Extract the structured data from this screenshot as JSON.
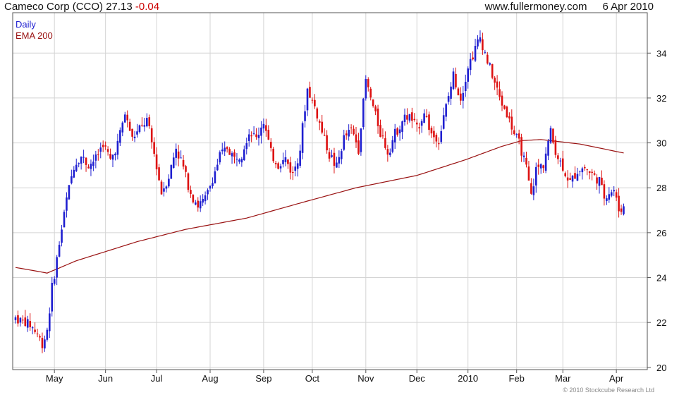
{
  "header": {
    "name": "Cameco Corp (CCO)",
    "last": "27.13",
    "change": "-0.04",
    "website": "www.fullermoney.com",
    "date": "6 Apr 2010"
  },
  "legend": {
    "daily": "Daily",
    "ema": "EMA 200"
  },
  "copyright": "© 2010 Stockcube Research Ltd",
  "colors": {
    "up": "#1f1fd0",
    "down": "#dd1111",
    "ema": "#991111",
    "grid": "#d4d4d4",
    "frame": "#555555"
  },
  "chart_data": {
    "type": "candlestick",
    "y_axis": {
      "side": "right",
      "ylim": [
        19.9,
        35.8
      ],
      "ticks": [
        20,
        22,
        24,
        26,
        28,
        30,
        32,
        34
      ]
    },
    "x_axis": {
      "tick_labels": [
        "May",
        "Jun",
        "Jul",
        "Aug",
        "Sep",
        "Oct",
        "Nov",
        "Dec",
        "2010",
        "Feb",
        "Mar",
        "Apr"
      ]
    },
    "grid": true,
    "legend_position": "top-left",
    "price_keypoints": [
      [
        0,
        22.2
      ],
      [
        6,
        21.9
      ],
      [
        9,
        21.5
      ],
      [
        11,
        21.0
      ],
      [
        13,
        21.7
      ],
      [
        15,
        23.5
      ],
      [
        18,
        25.5
      ],
      [
        21,
        27.5
      ],
      [
        24,
        29.0
      ],
      [
        27,
        29.4
      ],
      [
        30,
        29.0
      ],
      [
        33,
        29.3
      ],
      [
        36,
        30.0
      ],
      [
        39,
        29.2
      ],
      [
        42,
        30.0
      ],
      [
        45,
        31.3
      ],
      [
        48,
        30.2
      ],
      [
        51,
        30.6
      ],
      [
        54,
        31.0
      ],
      [
        57,
        29.5
      ],
      [
        60,
        27.8
      ],
      [
        63,
        28.5
      ],
      [
        66,
        29.8
      ],
      [
        69,
        28.9
      ],
      [
        72,
        27.8
      ],
      [
        75,
        27.2
      ],
      [
        78,
        27.5
      ],
      [
        81,
        28.4
      ],
      [
        84,
        29.4
      ],
      [
        87,
        29.8
      ],
      [
        90,
        29.3
      ],
      [
        93,
        29.6
      ],
      [
        96,
        30.5
      ],
      [
        99,
        30.2
      ],
      [
        102,
        31.0
      ],
      [
        105,
        29.5
      ],
      [
        108,
        29.0
      ],
      [
        111,
        29.3
      ],
      [
        114,
        28.6
      ],
      [
        117,
        29.8
      ],
      [
        120,
        32.4
      ],
      [
        123,
        31.6
      ],
      [
        126,
        30.5
      ],
      [
        129,
        29.5
      ],
      [
        132,
        28.9
      ],
      [
        135,
        30.2
      ],
      [
        138,
        30.6
      ],
      [
        141,
        29.8
      ],
      [
        144,
        32.8
      ],
      [
        147,
        31.6
      ],
      [
        150,
        30.5
      ],
      [
        153,
        29.6
      ],
      [
        156,
        30.4
      ],
      [
        159,
        31.0
      ],
      [
        162,
        31.2
      ],
      [
        165,
        30.6
      ],
      [
        168,
        31.4
      ],
      [
        171,
        30.4
      ],
      [
        174,
        30.1
      ],
      [
        177,
        31.6
      ],
      [
        180,
        33.0
      ],
      [
        183,
        32.0
      ],
      [
        186,
        33.4
      ],
      [
        189,
        34.2
      ],
      [
        191,
        34.7
      ],
      [
        193,
        34.0
      ],
      [
        196,
        33.0
      ],
      [
        199,
        32.0
      ],
      [
        202,
        31.3
      ],
      [
        205,
        30.4
      ],
      [
        208,
        29.7
      ],
      [
        210,
        28.8
      ],
      [
        212,
        27.6
      ],
      [
        214,
        28.8
      ],
      [
        217,
        29.1
      ],
      [
        220,
        30.5
      ],
      [
        222,
        29.6
      ],
      [
        225,
        28.9
      ],
      [
        228,
        28.2
      ],
      [
        231,
        28.8
      ],
      [
        234,
        28.9
      ],
      [
        237,
        28.6
      ],
      [
        240,
        28.3
      ],
      [
        242,
        27.6
      ],
      [
        244,
        27.8
      ],
      [
        246,
        27.9
      ],
      [
        248,
        27.0
      ],
      [
        250,
        27.13
      ]
    ],
    "ema200_keypoints": [
      [
        0,
        24.45
      ],
      [
        8,
        24.3
      ],
      [
        13,
        24.2
      ],
      [
        25,
        24.75
      ],
      [
        50,
        25.6
      ],
      [
        70,
        26.15
      ],
      [
        95,
        26.65
      ],
      [
        118,
        27.35
      ],
      [
        140,
        28.0
      ],
      [
        165,
        28.55
      ],
      [
        185,
        29.25
      ],
      [
        200,
        29.85
      ],
      [
        208,
        30.1
      ],
      [
        216,
        30.15
      ],
      [
        232,
        29.95
      ],
      [
        250,
        29.55
      ]
    ]
  }
}
